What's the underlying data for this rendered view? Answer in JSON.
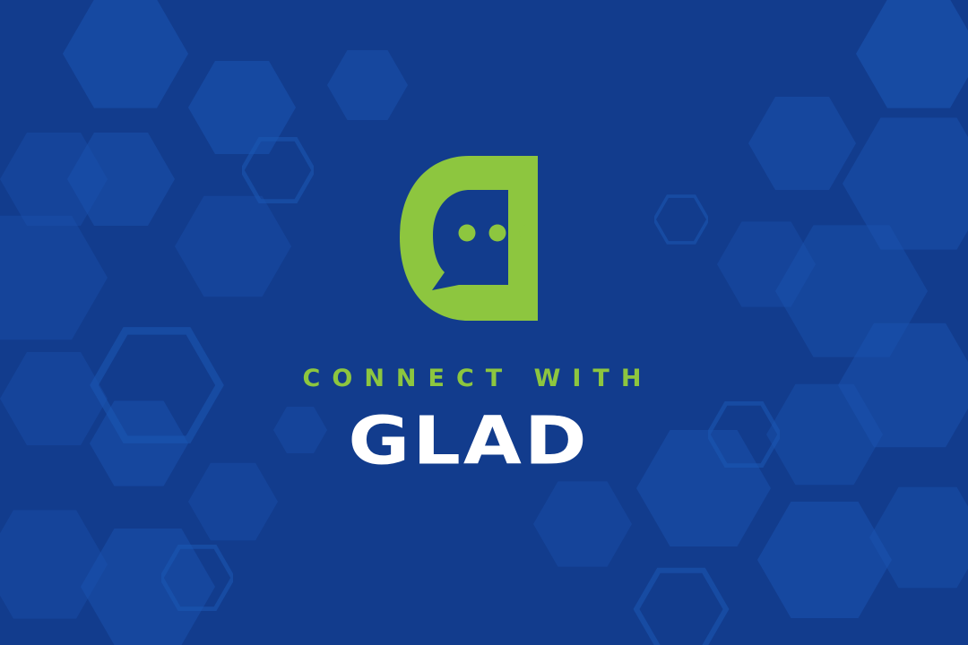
{
  "banner": {
    "tagline": "CONNECT WITH",
    "brand_name": "GLAD",
    "logo_icon": "g-chat-bubble-icon",
    "background_pattern": "hexagon-pattern"
  },
  "colors": {
    "background": "#123c8d",
    "hex_light": "#1b55b3",
    "hex_mid": "#174aa6",
    "accent_green": "#8dc63f",
    "brand_text": "#ffffff"
  }
}
